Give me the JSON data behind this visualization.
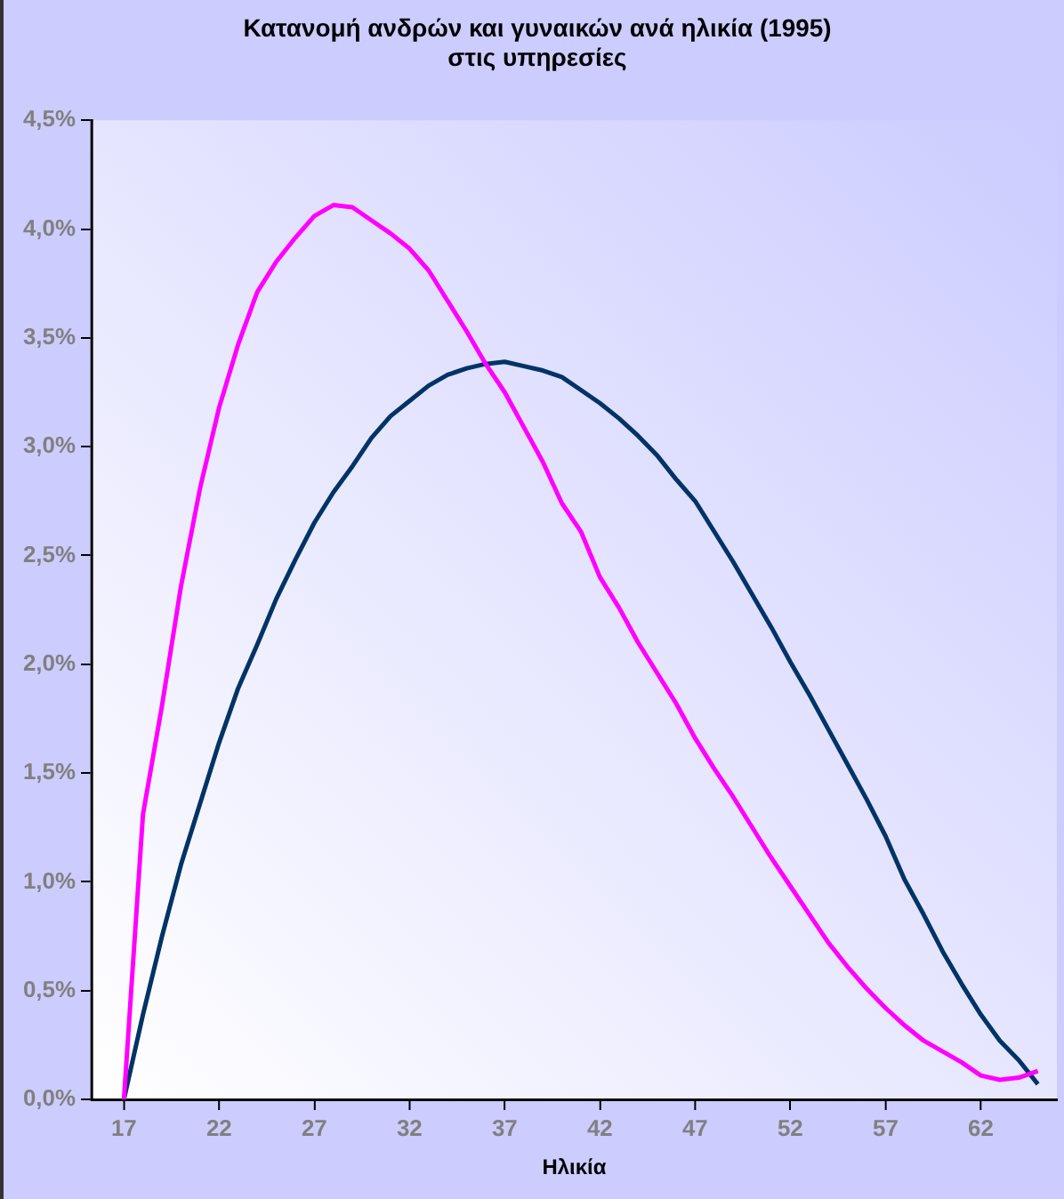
{
  "chart_data": {
    "type": "line",
    "title": "Κατανομή ανδρών και γυναικών ανά ηλικία (1995)\nστις υπηρεσίες",
    "xlabel": "Ηλικία",
    "x": [
      17,
      18,
      19,
      20,
      21,
      22,
      23,
      24,
      25,
      26,
      27,
      28,
      29,
      30,
      31,
      32,
      33,
      34,
      35,
      36,
      37,
      38,
      39,
      40,
      41,
      42,
      43,
      44,
      45,
      46,
      47,
      48,
      49,
      50,
      51,
      52,
      53,
      54,
      55,
      56,
      57,
      58,
      59,
      60,
      61,
      62,
      63,
      64,
      65
    ],
    "series": [
      {
        "color": "#ff00ff",
        "values": [
          0,
          1.31,
          1.81,
          2.36,
          2.81,
          3.18,
          3.47,
          3.71,
          3.85,
          3.96,
          4.06,
          4.11,
          4.1,
          4.04,
          3.98,
          3.91,
          3.81,
          3.67,
          3.53,
          3.38,
          3.25,
          3.09,
          2.93,
          2.74,
          2.61,
          2.4,
          2.26,
          2.1,
          1.96,
          1.82,
          1.66,
          1.52,
          1.39,
          1.25,
          1.11,
          0.98,
          0.85,
          0.72,
          0.61,
          0.51,
          0.42,
          0.34,
          0.27,
          0.22,
          0.17,
          0.11,
          0.09,
          0.1,
          0.13
        ]
      },
      {
        "color": "#003366",
        "values": [
          0,
          0.39,
          0.75,
          1.08,
          1.36,
          1.64,
          1.89,
          2.09,
          2.3,
          2.48,
          2.65,
          2.79,
          2.91,
          3.04,
          3.14,
          3.21,
          3.28,
          3.33,
          3.36,
          3.38,
          3.39,
          3.37,
          3.35,
          3.32,
          3.26,
          3.2,
          3.13,
          3.05,
          2.96,
          2.85,
          2.75,
          2.61,
          2.47,
          2.32,
          2.17,
          2.01,
          1.86,
          1.7,
          1.54,
          1.38,
          1.21,
          1.01,
          0.85,
          0.68,
          0.53,
          0.39,
          0.27,
          0.18,
          0.07
        ]
      }
    ],
    "xlim": [
      15.3,
      66
    ],
    "xticks": [
      17,
      22,
      27,
      32,
      37,
      42,
      47,
      52,
      57,
      62
    ],
    "ylim": [
      0,
      4.5
    ],
    "yticks": [
      {
        "value": 0,
        "label": "0,0%"
      },
      {
        "value": 0.5,
        "label": "0,5%"
      },
      {
        "value": 1,
        "label": "1,0%"
      },
      {
        "value": 1.5,
        "label": "1,5%"
      },
      {
        "value": 2,
        "label": "2,0%"
      },
      {
        "value": 2.5,
        "label": "2,5%"
      },
      {
        "value": 3,
        "label": "3,0%"
      },
      {
        "value": 3.5,
        "label": "3,5%"
      },
      {
        "value": 4,
        "label": "4,0%"
      },
      {
        "value": 4.5,
        "label": "4,5%"
      }
    ],
    "grid": false,
    "legend": false,
    "marker": "none",
    "line_style": "solid"
  }
}
